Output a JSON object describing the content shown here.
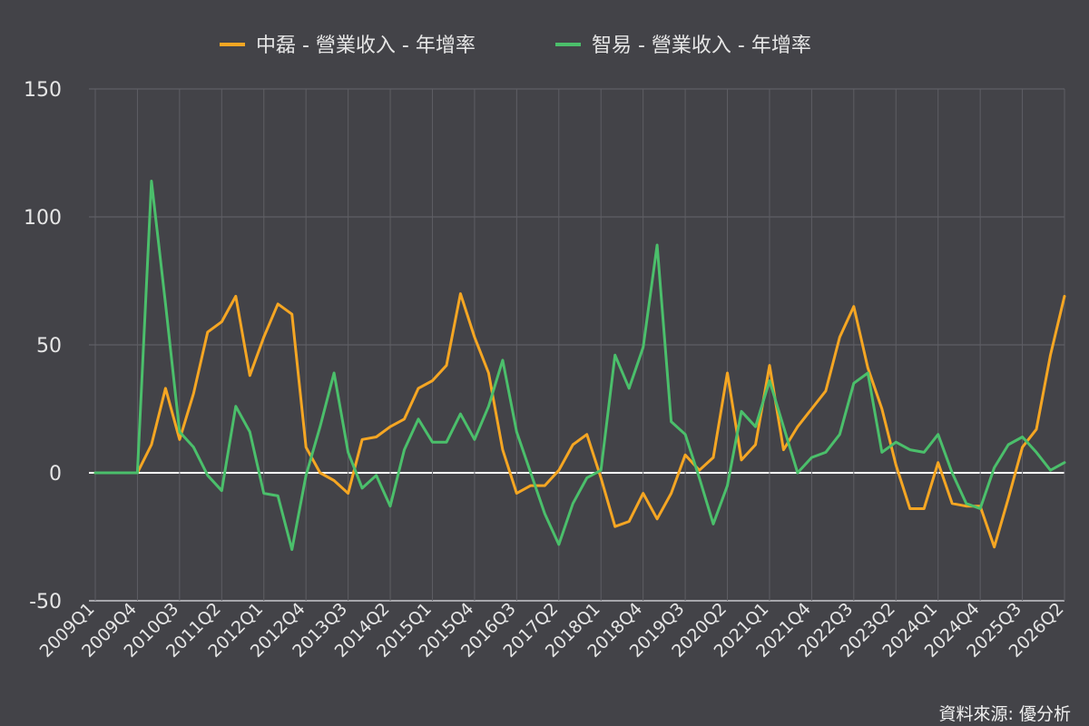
{
  "chart_data": {
    "type": "line",
    "ylim": [
      -50,
      150
    ],
    "yticks": [
      "150",
      "100",
      "50",
      "0",
      "-50"
    ],
    "ytick_values": [
      150,
      100,
      50,
      0,
      -50
    ],
    "x_tick_labels": [
      "2009Q1",
      "2009Q4",
      "2010Q3",
      "2011Q2",
      "2012Q1",
      "2012Q4",
      "2013Q3",
      "2014Q2",
      "2015Q1",
      "2015Q4",
      "2016Q3",
      "2017Q2",
      "2018Q1",
      "2018Q4",
      "2019Q3",
      "2020Q2",
      "2021Q1",
      "2021Q4",
      "2022Q3",
      "2023Q2",
      "2024Q1",
      "2024Q4",
      "2025Q3",
      "2026Q2"
    ],
    "x": [
      "2009Q1",
      "2009Q2",
      "2009Q3",
      "2009Q4",
      "2010Q1",
      "2010Q2",
      "2010Q3",
      "2010Q4",
      "2011Q1",
      "2011Q2",
      "2011Q3",
      "2011Q4",
      "2012Q1",
      "2012Q2",
      "2012Q3",
      "2012Q4",
      "2013Q1",
      "2013Q2",
      "2013Q3",
      "2013Q4",
      "2014Q1",
      "2014Q2",
      "2014Q3",
      "2014Q4",
      "2015Q1",
      "2015Q2",
      "2015Q3",
      "2015Q4",
      "2016Q1",
      "2016Q2",
      "2016Q3",
      "2016Q4",
      "2017Q1",
      "2017Q2",
      "2017Q3",
      "2017Q4",
      "2018Q1",
      "2018Q2",
      "2018Q3",
      "2018Q4",
      "2019Q1",
      "2019Q2",
      "2019Q3",
      "2019Q4",
      "2020Q1",
      "2020Q2",
      "2020Q3",
      "2020Q4",
      "2021Q1",
      "2021Q2",
      "2021Q3",
      "2021Q4",
      "2022Q1",
      "2022Q2",
      "2022Q3",
      "2022Q4",
      "2023Q1",
      "2023Q2",
      "2023Q3",
      "2023Q4",
      "2024Q1",
      "2024Q2",
      "2024Q3",
      "2024Q4",
      "2025Q1",
      "2025Q2",
      "2025Q3",
      "2025Q4",
      "2026Q1",
      "2026Q2"
    ],
    "grid": true,
    "legend_position": "top-center",
    "series": [
      {
        "name": "中磊 - 營業收入 - 年增率",
        "color": "#f5a623",
        "values": [
          0,
          0,
          0,
          0,
          11,
          33,
          13,
          31,
          55,
          59,
          69,
          38,
          53,
          66,
          62,
          10,
          0,
          -3,
          -8,
          13,
          14,
          18,
          21,
          33,
          36,
          42,
          70,
          53,
          39,
          9,
          -8,
          -5,
          -5,
          1,
          11,
          15,
          -2,
          -21,
          -19,
          -8,
          -18,
          -8,
          7,
          1,
          6,
          39,
          5,
          11,
          42,
          9,
          18,
          25,
          32,
          53,
          65,
          41,
          25,
          3,
          -14,
          -14,
          4,
          -12,
          -13,
          -13,
          -29,
          -10,
          10,
          17,
          46,
          69
        ]
      },
      {
        "name": "智易 - 營業收入 - 年增率",
        "color": "#4bbf6b",
        "values": [
          0,
          0,
          0,
          0,
          114,
          66,
          16,
          10,
          -1,
          -7,
          26,
          16,
          -8,
          -9,
          -30,
          -1,
          18,
          39,
          8,
          -6,
          -1,
          -13,
          9,
          21,
          12,
          12,
          23,
          13,
          26,
          44,
          16,
          0,
          -16,
          -28,
          -12,
          -2,
          1,
          46,
          33,
          49,
          89,
          20,
          15,
          -2,
          -20,
          -5,
          24,
          18,
          36,
          18,
          0,
          6,
          8,
          15,
          35,
          39,
          8,
          12,
          9,
          8,
          15,
          0,
          -12,
          -14,
          2,
          11,
          14,
          8,
          1,
          4
        ]
      }
    ],
    "source": "資料來源: 優分析"
  }
}
